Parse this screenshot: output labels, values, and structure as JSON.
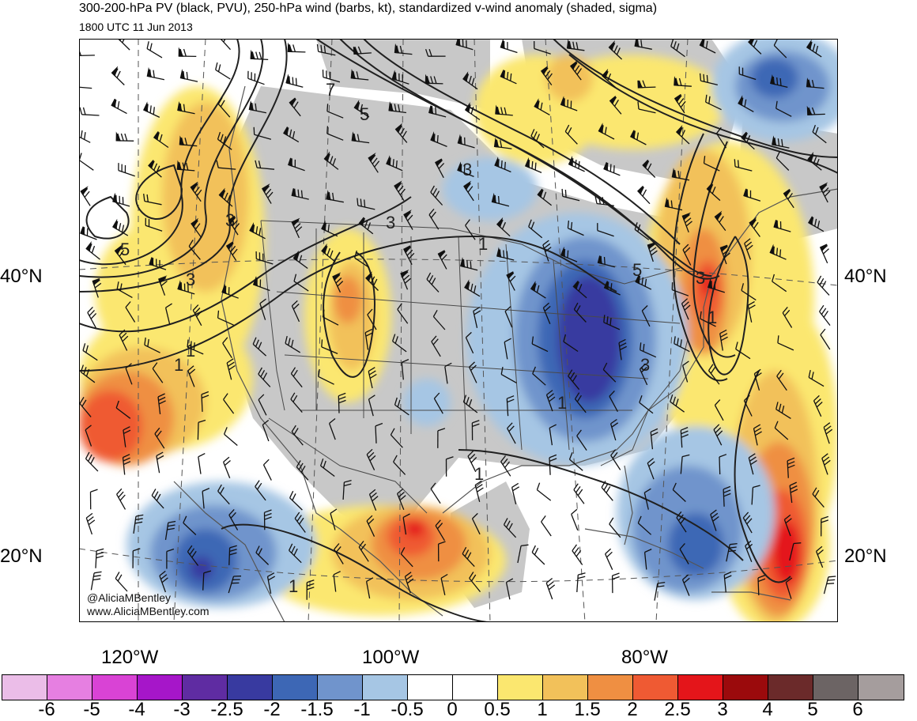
{
  "title": {
    "line1": "300-200-hPa PV (black, PVU), 250-hPa wind (barbs, kt), standardized v-wind anomaly (shaded, sigma)",
    "line2": "1800 UTC 11 Jun 2013"
  },
  "map": {
    "lat_labels": [
      {
        "text": "40°N",
        "side": "left"
      },
      {
        "text": "40°N",
        "side": "right"
      },
      {
        "text": "20°N",
        "side": "left"
      },
      {
        "text": "20°N",
        "side": "right"
      }
    ],
    "lon_labels": [
      "120°W",
      "100°W",
      "80°W"
    ],
    "pv_contour_labels": [
      "7",
      "5",
      "3",
      "3",
      "3",
      "3",
      "1",
      "1",
      "5",
      "3",
      "1",
      "1",
      "3",
      "1",
      "1",
      "1",
      "5"
    ],
    "credit": {
      "line1": "@AliciaMBentley",
      "line2": "www.AliciaMBentley.com"
    }
  },
  "colorbar": {
    "colors": [
      "#ebbde8",
      "#e67fe1",
      "#d943d5",
      "#a616c9",
      "#5f2ca2",
      "#383aa0",
      "#3d67b5",
      "#7094cc",
      "#a6c6e4",
      "#ffffff",
      "#ffffff",
      "#fbe76f",
      "#f2c15a",
      "#ef8f42",
      "#ef5a33",
      "#e4151a",
      "#9b0a0c",
      "#6b2a2a",
      "#6c6464",
      "#a59d9d"
    ],
    "ticks": [
      "-6",
      "-5",
      "-4",
      "-3",
      "-2.5",
      "-2",
      "-1.5",
      "-1",
      "-0.5",
      "0",
      "0.5",
      "1",
      "1.5",
      "2",
      "2.5",
      "3",
      "4",
      "5",
      "6"
    ]
  },
  "colors": {
    "land_gray": "#c8c8c8",
    "border": "#4a4a4a",
    "contour": "#202020"
  }
}
